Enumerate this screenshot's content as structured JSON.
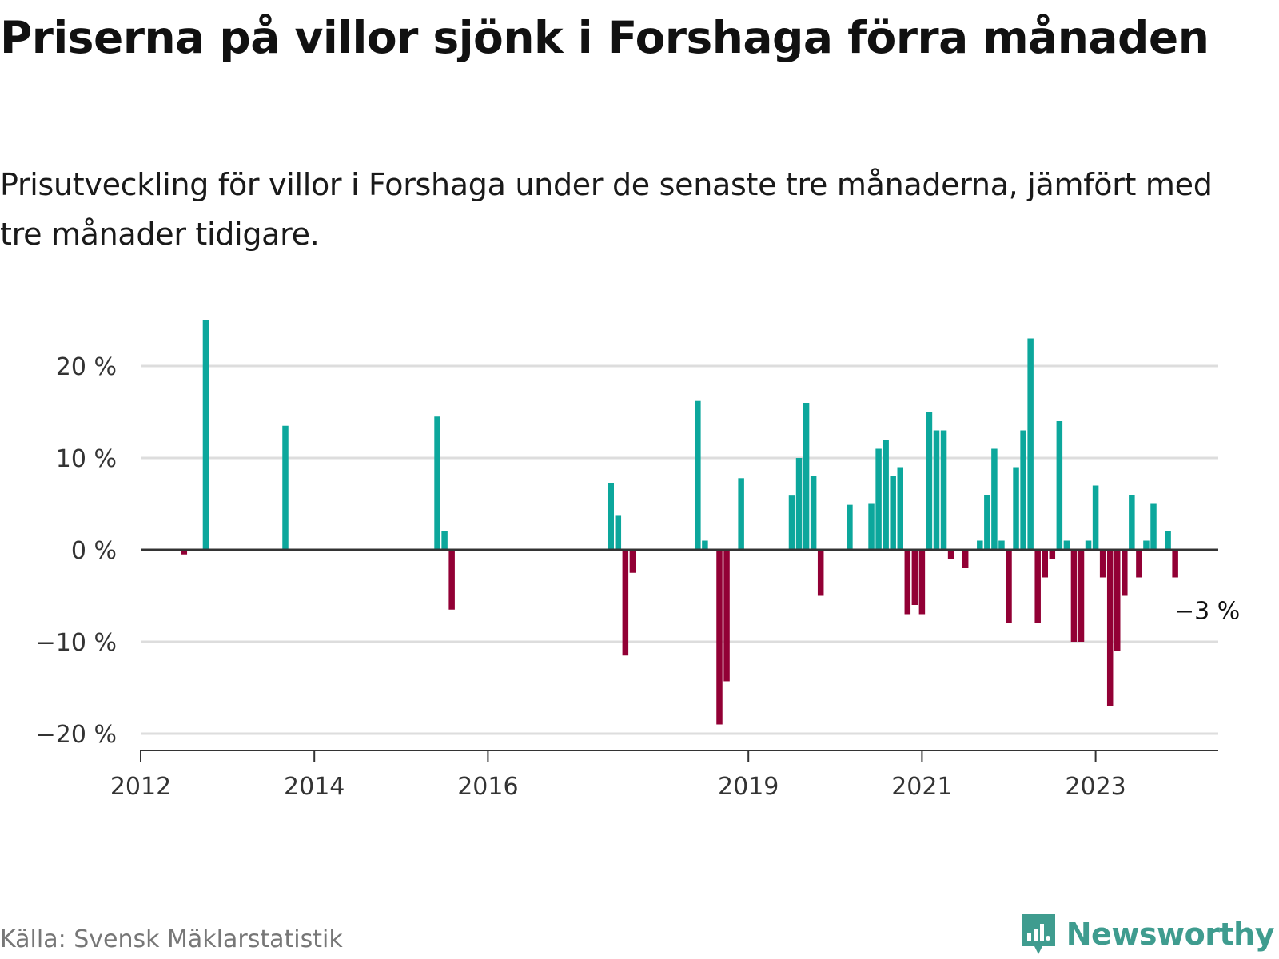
{
  "title": "Priserna på villor sjönk i Forshaga förra månaden",
  "subtitle": "Prisutveckling för villor i Forshaga under de senaste tre månaderna, jämfört med tre månader tidigare.",
  "source": "Källa: Svensk Mäklarstatistik",
  "brand": {
    "name": "Newsworthy",
    "icon": "newsworthy-logo-icon",
    "color": "#3f9c8f"
  },
  "colors": {
    "positive": "#0ca79c",
    "negative": "#920035",
    "grid": "#dddddd",
    "zero_line": "#333333"
  },
  "chart_data": {
    "type": "bar",
    "x_ticks": [
      "2012",
      "2014",
      "2016",
      "2019",
      "2021",
      "2023"
    ],
    "y_ticks": [
      "20 %",
      "10 %",
      "0 %",
      "−10 %",
      "−20 %"
    ],
    "y_tick_values": [
      20,
      10,
      0,
      -10,
      -20
    ],
    "ylim": [
      -22,
      27
    ],
    "xlim": [
      "2012-01",
      "2024-06"
    ],
    "grid": true,
    "annotation": {
      "text": "−3 %",
      "date": "2023-12",
      "value": -3
    },
    "values": [
      {
        "date": "2012-07",
        "value": -0.5
      },
      {
        "date": "2012-10",
        "value": 25
      },
      {
        "date": "2013-09",
        "value": 13.5
      },
      {
        "date": "2015-06",
        "value": 14.5
      },
      {
        "date": "2015-07",
        "value": 2
      },
      {
        "date": "2015-08",
        "value": -6.5
      },
      {
        "date": "2017-06",
        "value": 7.3
      },
      {
        "date": "2017-07",
        "value": 3.7
      },
      {
        "date": "2017-08",
        "value": -11.5
      },
      {
        "date": "2017-09",
        "value": -2.5
      },
      {
        "date": "2018-06",
        "value": 16.2
      },
      {
        "date": "2018-07",
        "value": 1
      },
      {
        "date": "2018-09",
        "value": -19
      },
      {
        "date": "2018-10",
        "value": -14.3
      },
      {
        "date": "2018-12",
        "value": 7.8
      },
      {
        "date": "2019-07",
        "value": 5.9
      },
      {
        "date": "2019-08",
        "value": 10
      },
      {
        "date": "2019-09",
        "value": 16
      },
      {
        "date": "2019-10",
        "value": 8
      },
      {
        "date": "2019-11",
        "value": -5
      },
      {
        "date": "2020-03",
        "value": 4.9
      },
      {
        "date": "2020-06",
        "value": 5
      },
      {
        "date": "2020-07",
        "value": 11
      },
      {
        "date": "2020-08",
        "value": 12
      },
      {
        "date": "2020-09",
        "value": 8
      },
      {
        "date": "2020-10",
        "value": 9
      },
      {
        "date": "2020-11",
        "value": -7
      },
      {
        "date": "2020-12",
        "value": -6
      },
      {
        "date": "2021-01",
        "value": -7
      },
      {
        "date": "2021-02",
        "value": 15
      },
      {
        "date": "2021-03",
        "value": 13
      },
      {
        "date": "2021-04",
        "value": 13
      },
      {
        "date": "2021-05",
        "value": -1
      },
      {
        "date": "2021-07",
        "value": -2
      },
      {
        "date": "2021-09",
        "value": 1
      },
      {
        "date": "2021-10",
        "value": 6
      },
      {
        "date": "2021-11",
        "value": 11
      },
      {
        "date": "2021-12",
        "value": 1
      },
      {
        "date": "2022-01",
        "value": -8
      },
      {
        "date": "2022-02",
        "value": 9
      },
      {
        "date": "2022-03",
        "value": 13
      },
      {
        "date": "2022-04",
        "value": 23
      },
      {
        "date": "2022-05",
        "value": -8
      },
      {
        "date": "2022-06",
        "value": -3
      },
      {
        "date": "2022-07",
        "value": -1
      },
      {
        "date": "2022-08",
        "value": 14
      },
      {
        "date": "2022-09",
        "value": 1
      },
      {
        "date": "2022-10",
        "value": -10
      },
      {
        "date": "2022-11",
        "value": -10
      },
      {
        "date": "2022-12",
        "value": 1
      },
      {
        "date": "2023-01",
        "value": 7
      },
      {
        "date": "2023-02",
        "value": -3
      },
      {
        "date": "2023-03",
        "value": -17
      },
      {
        "date": "2023-04",
        "value": -11
      },
      {
        "date": "2023-05",
        "value": -5
      },
      {
        "date": "2023-06",
        "value": 6
      },
      {
        "date": "2023-07",
        "value": -3
      },
      {
        "date": "2023-08",
        "value": 1
      },
      {
        "date": "2023-09",
        "value": 5
      },
      {
        "date": "2023-10",
        "value": 0
      },
      {
        "date": "2023-11",
        "value": 2
      },
      {
        "date": "2023-12",
        "value": -3
      }
    ]
  }
}
